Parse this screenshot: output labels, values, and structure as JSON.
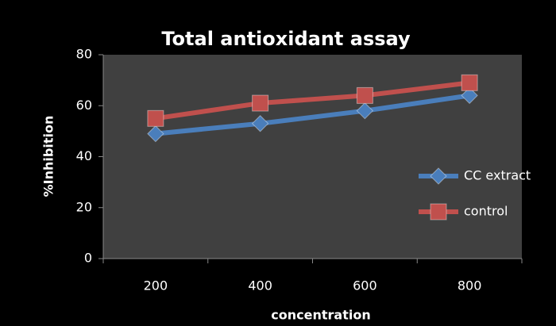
{
  "chart_data": {
    "type": "line",
    "title": "Total  antioxidant assay",
    "x_label": "concentration",
    "y_label": "%Inhibition",
    "categories": [
      "200",
      "400",
      "600",
      "800"
    ],
    "series": [
      {
        "name": "CC extract",
        "color": "#4a7ebb",
        "marker": "diamond",
        "values": [
          49,
          53,
          58,
          64
        ]
      },
      {
        "name": "control",
        "color": "#c0504d",
        "marker": "square",
        "values": [
          55,
          61,
          64,
          69
        ]
      }
    ],
    "ylim": [
      0,
      80
    ],
    "yticks": [
      0,
      20,
      40,
      60,
      80
    ],
    "grid": false,
    "legend": "right"
  }
}
